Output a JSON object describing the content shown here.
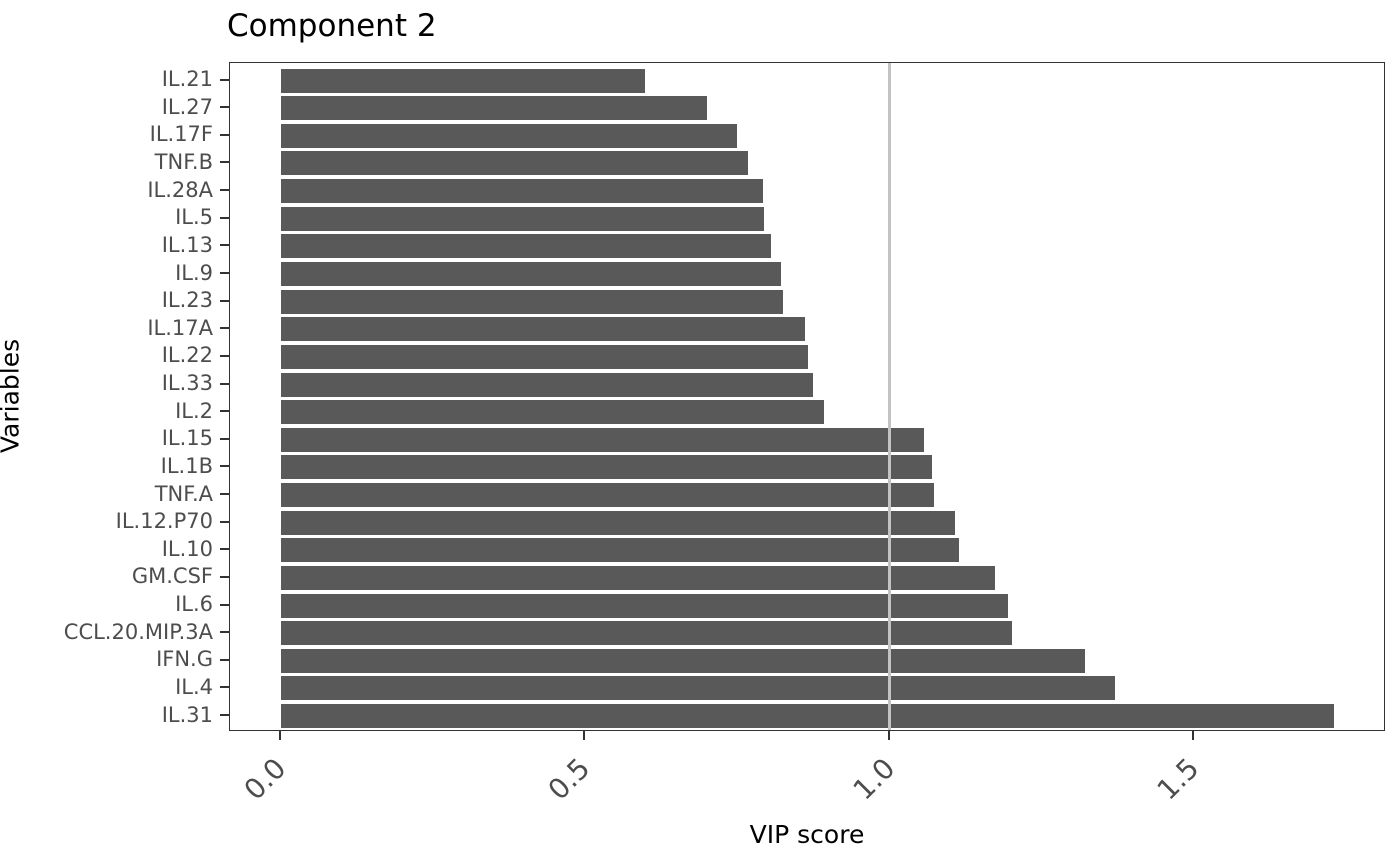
{
  "chart_data": {
    "type": "bar",
    "orientation": "horizontal",
    "title": "Component 2",
    "xlabel": "VIP score",
    "ylabel": "Variables",
    "categories": [
      "IL.21",
      "IL.27",
      "IL.17F",
      "TNF.B",
      "IL.28A",
      "IL.5",
      "IL.13",
      "IL.9",
      "IL.23",
      "IL.17A",
      "IL.22",
      "IL.33",
      "IL.2",
      "IL.15",
      "IL.1B",
      "TNF.A",
      "IL.12.P70",
      "IL.10",
      "GM.CSF",
      "IL.6",
      "CCL.20.MIP.3A",
      "IFN.G",
      "IL.4",
      "IL.31"
    ],
    "values": [
      0.598,
      0.7,
      0.749,
      0.767,
      0.792,
      0.793,
      0.805,
      0.821,
      0.825,
      0.861,
      0.866,
      0.874,
      0.892,
      1.056,
      1.069,
      1.073,
      1.107,
      1.114,
      1.173,
      1.194,
      1.201,
      1.321,
      1.37,
      1.73
    ],
    "x_ticks": [
      0.0,
      0.5,
      1.0,
      1.5
    ],
    "x_tick_labels": [
      "0.0",
      "0.5",
      "1.0",
      "1.5"
    ],
    "xlim": [
      -0.086,
      1.815
    ],
    "reference_line_x": 1.0,
    "bar_color": "#595959",
    "reference_line_color": "#c3c3c3",
    "grid": false,
    "legend_position": "none"
  }
}
